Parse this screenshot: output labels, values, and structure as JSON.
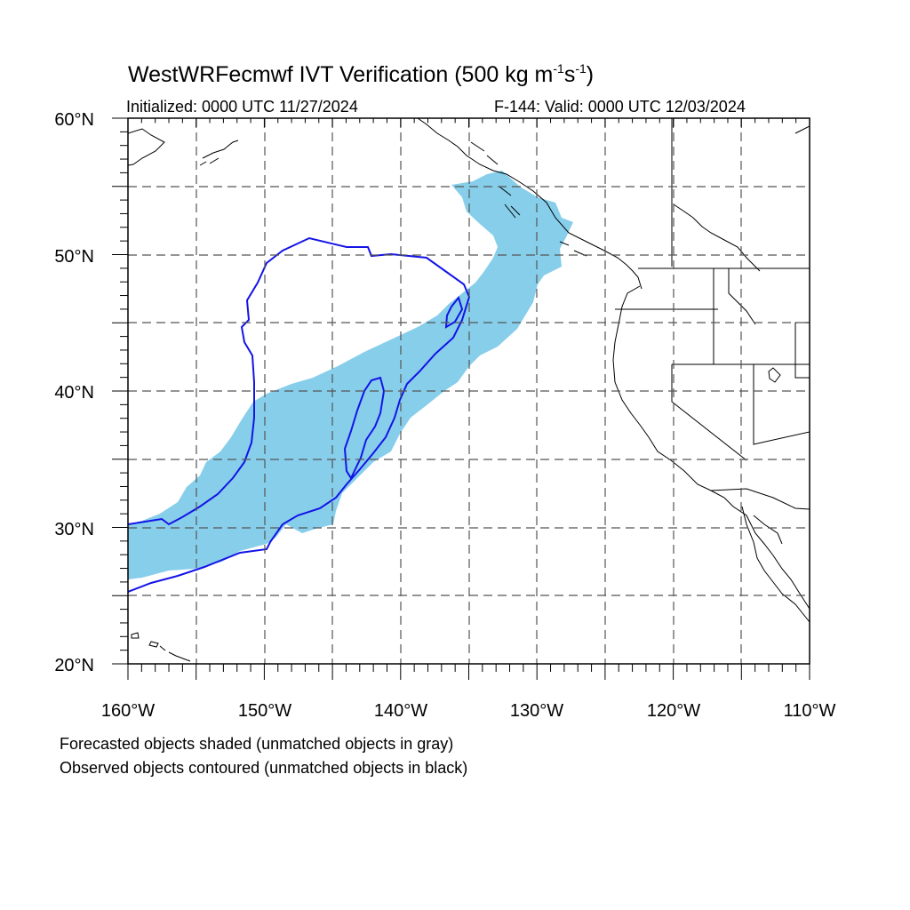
{
  "title": {
    "main": "WestWRFecmwf IVT Verification (500 kg m",
    "sup1": "-1",
    "mid": "s",
    "sup2": "-1",
    "end": ")"
  },
  "initialized": "Initialized: 0000 UTC 11/27/2024",
  "valid": "F-144: Valid: 0000 UTC 12/03/2024",
  "axes": {
    "lon_range": [
      -160,
      -110
    ],
    "lat_range": [
      20,
      60
    ],
    "lon_labels": [
      "160°W",
      "150°W",
      "140°W",
      "130°W",
      "120°W",
      "110°W"
    ],
    "lat_labels": [
      "20°N",
      "30°N",
      "40°N",
      "50°N",
      "60°N"
    ],
    "grid_step_deg": 5,
    "grid": true
  },
  "legend": {
    "forecast": "Forecasted objects shaded (unmatched objects in gray)",
    "observed": "Observed objects contoured (unmatched objects in black)"
  },
  "colors": {
    "forecast_fill": "#87ceeb",
    "observed_contour": "#1414e6",
    "coastline": "#000000",
    "grid": "#555555"
  }
}
